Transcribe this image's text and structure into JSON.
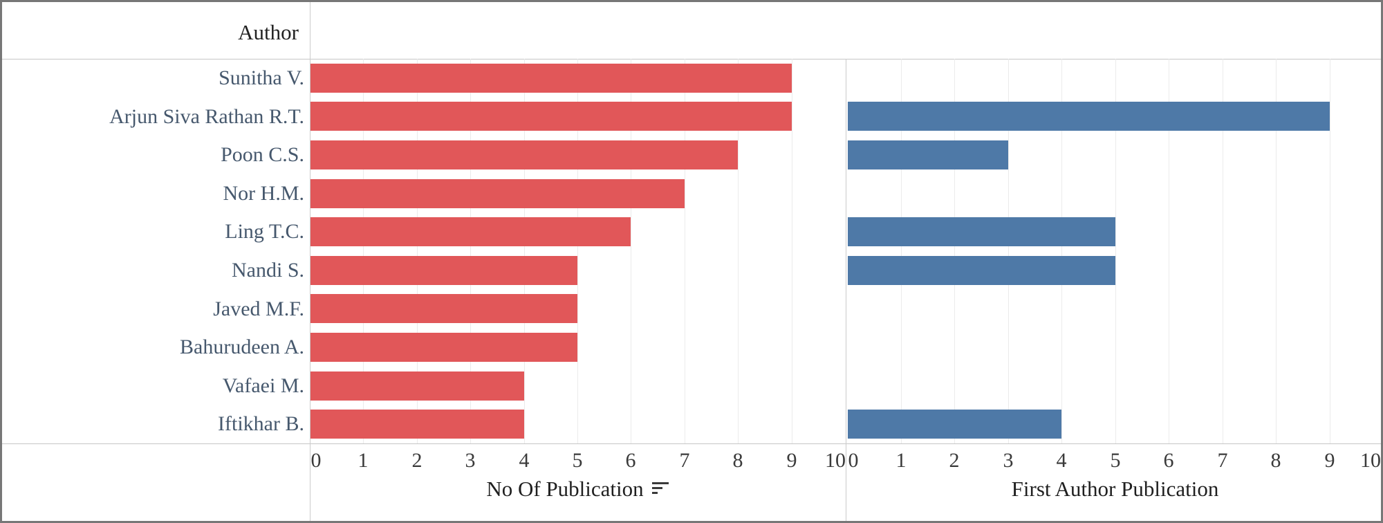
{
  "header": {
    "author_label": "Author"
  },
  "chart_data": {
    "type": "bar",
    "orientation": "horizontal",
    "title": "",
    "categories": [
      "Sunitha V.",
      "Arjun Siva Rathan R.T.",
      "Poon C.S.",
      "Nor H.M.",
      "Ling T.C.",
      "Nandi S.",
      "Javed M.F.",
      "Bahurudeen A.",
      "Vafaei M.",
      "Iftikhar B."
    ],
    "series": [
      {
        "name": "No Of Publication",
        "color": "#e15759",
        "values": [
          9,
          9,
          8,
          7,
          6,
          5,
          5,
          5,
          4,
          4
        ]
      },
      {
        "name": "First Author Publication",
        "color": "#4e79a7",
        "values": [
          0,
          9,
          3,
          0,
          5,
          5,
          0,
          0,
          0,
          4
        ]
      }
    ],
    "x_ticks": [
      0,
      1,
      2,
      3,
      4,
      5,
      6,
      7,
      8,
      9,
      10
    ],
    "xlim": [
      0,
      10
    ],
    "grid": true,
    "panel_titles": [
      "No Of Publication",
      "First Author Publication"
    ],
    "legend_position": "none",
    "sort_icon_on_panel": "No Of Publication"
  },
  "colors": {
    "bar_left": "#e15759",
    "bar_right": "#4e79a7",
    "gridline": "#ebebeb",
    "axis_line": "#c6c6c6",
    "border": "#777777",
    "author_text": "#46586d",
    "tick_text": "#3a3a3a"
  }
}
